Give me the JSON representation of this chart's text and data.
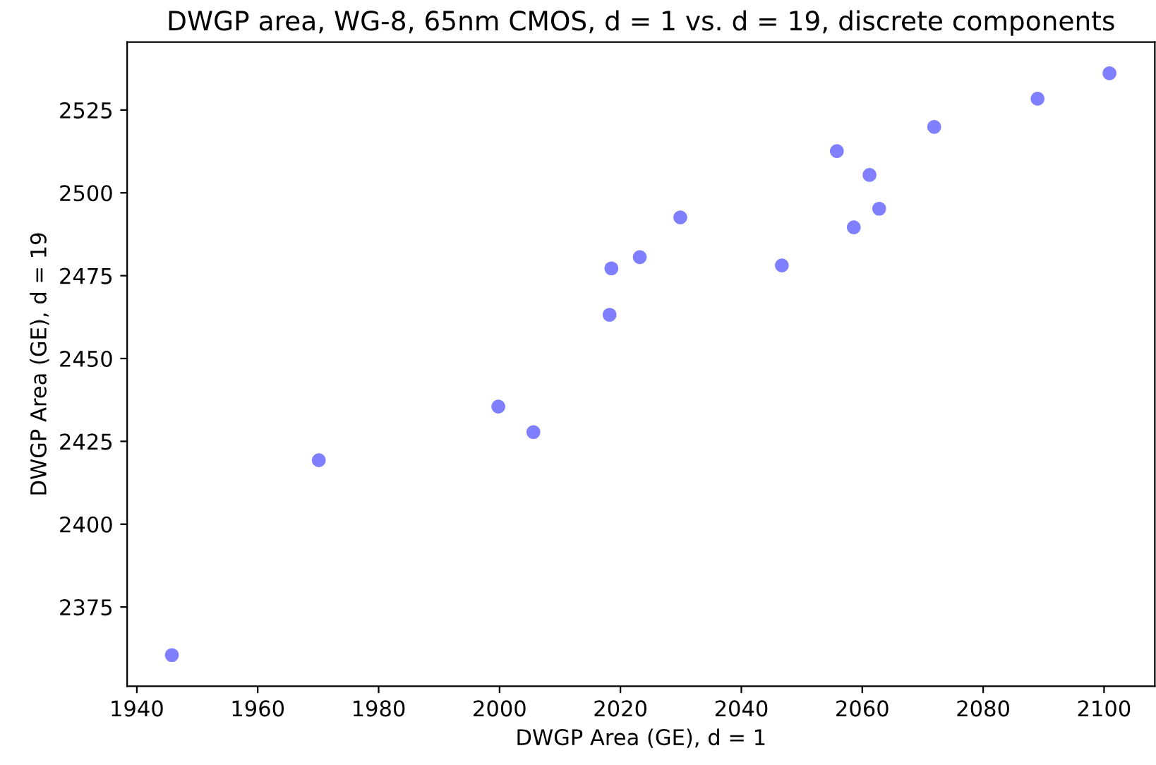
{
  "chart_data": {
    "type": "scatter",
    "title": "DWGP area, WG-8, 65nm CMOS, d = 1 vs. d = 19, discrete components",
    "xlabel": "DWGP Area (GE), d = 1",
    "ylabel": "DWGP Area (GE), d = 19",
    "series": [
      {
        "color": "#7f7fff",
        "x": [
          1945.8,
          1970.1,
          1999.8,
          2005.6,
          2018.2,
          2018.5,
          2023.2,
          2029.9,
          2046.7,
          2055.8,
          2058.6,
          2061.2,
          2062.8,
          2071.9,
          2089.0,
          2100.9
        ],
        "values": [
          2360.5,
          2419.3,
          2435.5,
          2427.8,
          2463.2,
          2477.2,
          2480.6,
          2492.6,
          2478.1,
          2512.6,
          2489.6,
          2505.4,
          2495.2,
          2519.9,
          2528.4,
          2536.1
        ]
      }
    ],
    "xlim": [
      1938.4,
      2108.4
    ],
    "ylim": [
      2351.1,
      2545.5
    ],
    "xticks": [
      1940,
      1960,
      1980,
      2000,
      2020,
      2040,
      2060,
      2080,
      2100
    ],
    "yticks": [
      2375,
      2400,
      2425,
      2450,
      2475,
      2500,
      2525
    ],
    "marker": "circle",
    "grid": false,
    "legend": false
  }
}
